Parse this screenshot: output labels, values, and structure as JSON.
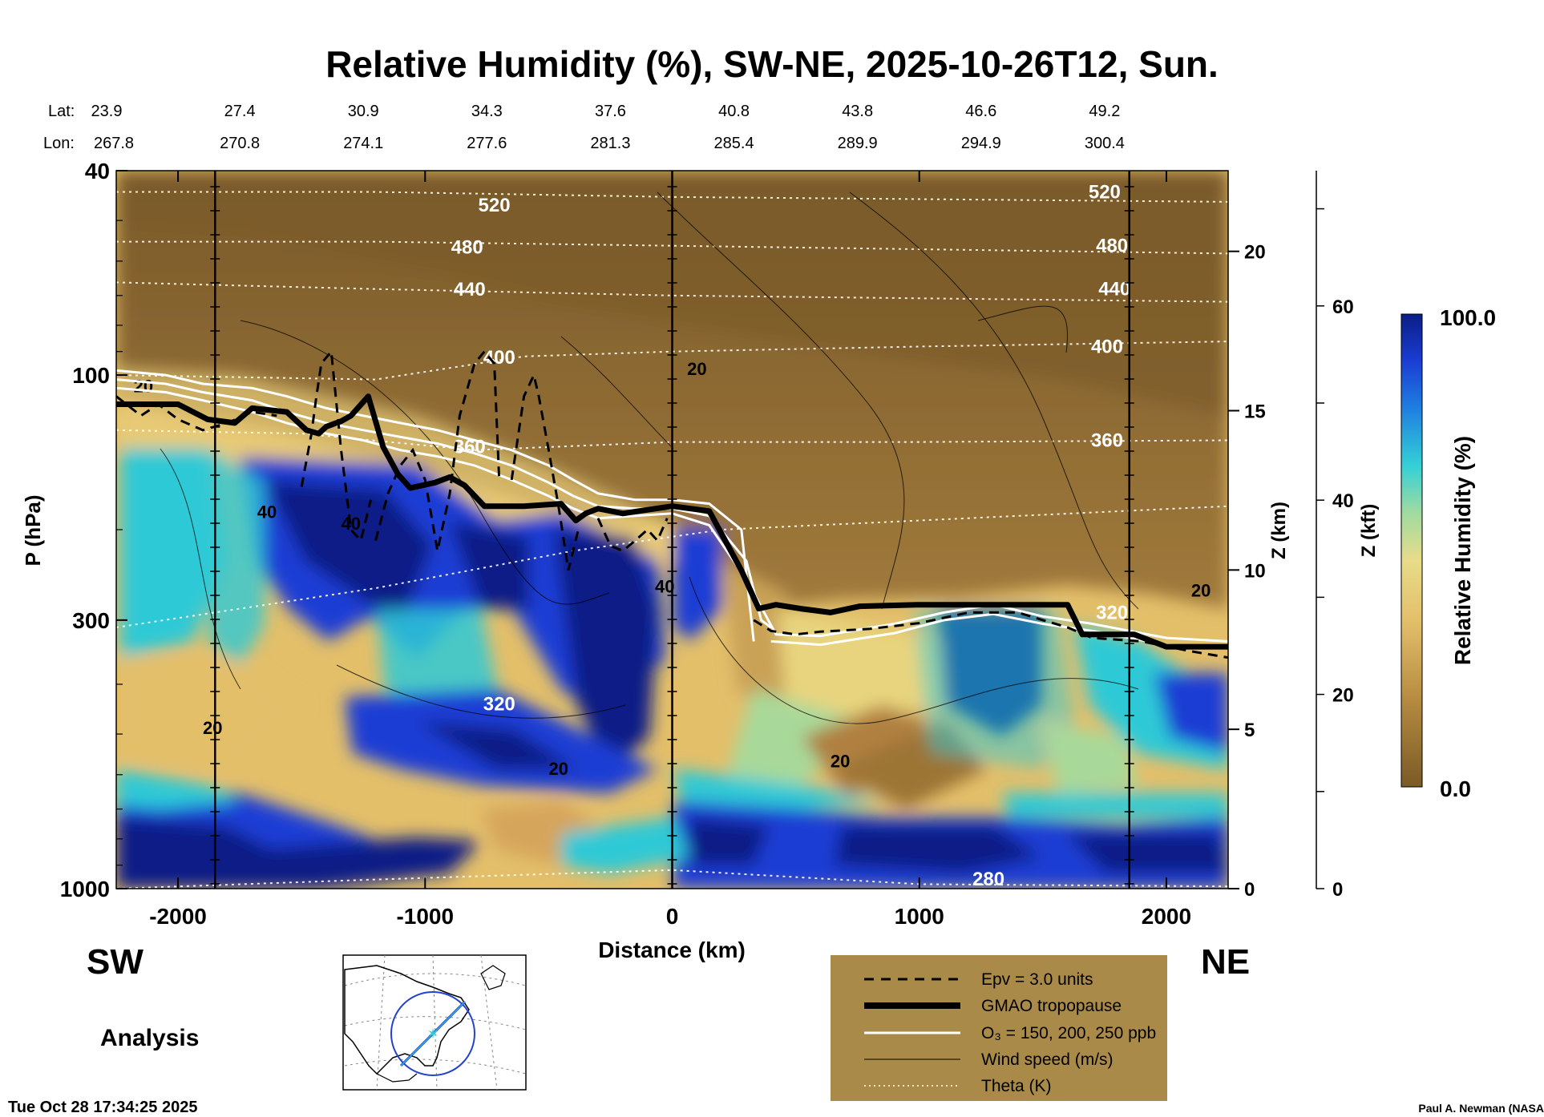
{
  "chart_data": {
    "type": "heatmap",
    "title": "Relative Humidity (%), SW-NE, 2025-10-26T12, Sun.",
    "xlabel": "Distance (km)",
    "ylabel": "P (hPa)",
    "z_km_label": "Z (km)",
    "z_kft_label": "Z (kft)",
    "colorbar_label": "Relative Humidity (%)",
    "colorbar_max_label": "100.0",
    "colorbar_min_label": "0.0",
    "xlim": [
      -2250,
      2250
    ],
    "ylim_hpa": [
      1000,
      40
    ],
    "x_ticks": [
      "-2000",
      "-1000",
      "0",
      "1000",
      "2000"
    ],
    "x_tick_values": [
      -2000,
      -1000,
      0,
      1000,
      2000
    ],
    "p_ticks": [
      "40",
      "100",
      "300",
      "1000"
    ],
    "p_tick_values": [
      40,
      100,
      300,
      1000
    ],
    "z_km_ticks": [
      "0",
      "5",
      "10",
      "15",
      "20"
    ],
    "z_km_values": [
      0,
      5,
      10,
      15,
      20
    ],
    "z_kft_ticks": [
      "0",
      "20",
      "40",
      "60"
    ],
    "z_kft_values": [
      0,
      20,
      40,
      60
    ],
    "lat_label": "Lat:",
    "lon_label": "Lon:",
    "lat_values": [
      "23.9",
      "27.4",
      "30.9",
      "34.3",
      "37.6",
      "40.8",
      "43.8",
      "46.6",
      "49.2"
    ],
    "lon_values": [
      "267.8",
      "270.8",
      "274.1",
      "277.6",
      "281.3",
      "285.4",
      "289.9",
      "294.9",
      "300.4"
    ],
    "lat_lon_x": [
      -2250,
      -1750,
      -1250,
      -750,
      -250,
      250,
      750,
      1250,
      1750
    ],
    "vertical_lines_x": [
      -1850,
      0,
      1850
    ],
    "direction_left": "SW",
    "direction_right": "NE",
    "analysis_label": "Analysis",
    "theta_contours": [
      {
        "label": "520",
        "x": [
          -2250,
          -1200,
          0,
          2250
        ],
        "p": [
          44,
          44,
          45,
          46
        ],
        "label_x": -720,
        "label_p": 48
      },
      {
        "label": "480",
        "x": [
          -2250,
          -1200,
          0,
          2250
        ],
        "p": [
          55,
          55,
          56,
          58
        ],
        "label_x": -830,
        "label_p": 58
      },
      {
        "label": "440",
        "x": [
          -2250,
          -1200,
          0,
          2250
        ],
        "p": [
          66,
          68,
          70,
          72
        ],
        "label_x": -820,
        "label_p": 70
      },
      {
        "label": "400",
        "x": [
          -2250,
          -1200,
          -600,
          0,
          1000,
          2250
        ],
        "p": [
          100,
          102,
          92,
          90,
          88,
          86
        ],
        "label_x": -700,
        "label_p": 95
      },
      {
        "label": "360",
        "x": [
          -2250,
          -1500,
          -800,
          0,
          1000,
          2250
        ],
        "p": [
          128,
          130,
          140,
          135,
          135,
          134
        ],
        "label_x": -820,
        "label_p": 142
      },
      {
        "label": "320",
        "x": [
          -2250,
          -1200,
          -400,
          200,
          1200,
          2250
        ],
        "p": [
          310,
          260,
          220,
          200,
          190,
          180
        ],
        "label_x": -700,
        "label_p": 450
      },
      {
        "label": "280",
        "x": [
          -2250,
          -1200,
          0,
          1000,
          2250
        ],
        "p": [
          1000,
          960,
          920,
          980,
          990
        ],
        "label_x": 1280,
        "label_p": 985
      }
    ],
    "wind_labels": [
      {
        "label": "20",
        "x": -2140,
        "p": 108
      },
      {
        "label": "20",
        "x": 100,
        "p": 100
      },
      {
        "label": "20",
        "x": -1860,
        "p": 500
      },
      {
        "label": "20",
        "x": -460,
        "p": 600
      },
      {
        "label": "20",
        "x": 680,
        "p": 580
      },
      {
        "label": "20",
        "x": 2140,
        "p": 270
      },
      {
        "label": "40",
        "x": -1640,
        "p": 190
      },
      {
        "label": "40",
        "x": -1300,
        "p": 200
      },
      {
        "label": "40",
        "x": -30,
        "p": 265
      }
    ],
    "tropopause": {
      "x": [
        -2250,
        -2000,
        -1880,
        -1770,
        -1700,
        -1560,
        -1480,
        -1430,
        -1400,
        -1340,
        -1300,
        -1230,
        -1170,
        -1110,
        -1060,
        -960,
        -900,
        -840,
        -760,
        -600,
        -450,
        -390,
        -350,
        -300,
        -200,
        0,
        150,
        280,
        350,
        420,
        520,
        640,
        760,
        1000,
        1200,
        1600,
        1660,
        1870,
        2000,
        2250
      ],
      "p": [
        114,
        114,
        122,
        124,
        116,
        118,
        128,
        130,
        126,
        123,
        120,
        110,
        138,
        156,
        166,
        162,
        158,
        164,
        180,
        180,
        178,
        192,
        186,
        182,
        186,
        180,
        184,
        240,
        285,
        280,
        285,
        290,
        282,
        280,
        280,
        280,
        320,
        320,
        338,
        338
      ]
    },
    "epv": [
      {
        "x": [
          -2250,
          -2150,
          -2080,
          -2000,
          -1900,
          -1800,
          -1700,
          -1600
        ],
        "p": [
          110,
          120,
          114,
          122,
          128,
          124,
          118,
          120
        ]
      },
      {
        "x": [
          -1500,
          -1460,
          -1440,
          -1420,
          -1380,
          -1340,
          -1300,
          -1260,
          -1220
        ],
        "p": [
          165,
          130,
          110,
          95,
          90,
          140,
          200,
          210,
          175
        ]
      },
      {
        "x": [
          -1200,
          -1150,
          -1100,
          -1050,
          -1000,
          -950,
          -900,
          -860,
          -800,
          -760,
          -720,
          -700
        ],
        "p": [
          210,
          170,
          150,
          140,
          160,
          220,
          170,
          120,
          95,
          90,
          95,
          160
        ]
      },
      {
        "x": [
          -650,
          -600,
          -560,
          -540,
          -500,
          -460,
          -420,
          -380
        ],
        "p": [
          160,
          110,
          100,
          110,
          140,
          180,
          240,
          200
        ]
      },
      {
        "x": [
          -300,
          -250,
          -200,
          -150,
          -100,
          -60,
          -20
        ],
        "p": [
          190,
          215,
          220,
          210,
          200,
          210,
          190
        ]
      },
      {
        "x": [
          330,
          400,
          500,
          600,
          700,
          800,
          900,
          1000,
          1200,
          1400,
          1500,
          1600,
          1700,
          1900,
          2100,
          2250
        ],
        "p": [
          300,
          315,
          320,
          316,
          314,
          312,
          308,
          304,
          290,
          290,
          300,
          310,
          325,
          330,
          345,
          355
        ]
      }
    ],
    "ozone": [
      {
        "x": [
          -2250,
          -2050,
          -1900,
          -1700,
          -1560,
          -1400,
          -1250,
          -1100,
          -950,
          -800,
          -650,
          -500,
          -400,
          -300,
          -150,
          0,
          150,
          280,
          330
        ],
        "p": [
          98,
          100,
          104,
          106,
          110,
          116,
          120,
          124,
          128,
          134,
          140,
          150,
          160,
          170,
          175,
          175,
          178,
          200,
          330
        ]
      },
      {
        "x": [
          -2250,
          -2050,
          -1900,
          -1700,
          -1560,
          -1400,
          -1250,
          -1100,
          -950,
          -800,
          -650,
          -500,
          -400,
          -300,
          -150,
          0,
          150,
          300,
          360,
          400
        ],
        "p": [
          102,
          104,
          108,
          112,
          118,
          124,
          128,
          132,
          136,
          142,
          150,
          162,
          172,
          180,
          182,
          182,
          188,
          230,
          300,
          310
        ]
      },
      {
        "x": [
          -2250,
          -2050,
          -1900,
          -1700,
          -1560,
          -1400,
          -1250,
          -1100,
          -950,
          -800,
          -650,
          -500,
          -400,
          -300,
          -150,
          0,
          150,
          300,
          420,
          600,
          900,
          1100,
          1300,
          1500,
          1700,
          2000,
          2250
        ],
        "p": [
          106,
          108,
          112,
          118,
          124,
          130,
          134,
          140,
          144,
          150,
          160,
          172,
          182,
          190,
          188,
          186,
          196,
          250,
          320,
          322,
          305,
          290,
          280,
          295,
          305,
          325,
          330
        ]
      },
      {
        "x": [
          400,
          600,
          900,
          1100,
          1300,
          1500,
          1700,
          2000,
          2250
        ],
        "p": [
          330,
          335,
          318,
          300,
          292,
          305,
          315,
          335,
          340
        ]
      }
    ],
    "legend": {
      "items": [
        "Epv = 3.0 units",
        "GMAO tropopause",
        "O₃ = 150, 200, 250 ppb",
        "Wind speed (m/s)",
        "Theta (K)"
      ],
      "background": "#a98a48"
    },
    "colors": {
      "dry": "#7a5a26",
      "tan": "#c9a257",
      "yellow": "#ead27a",
      "green": "#a8d99a",
      "cyan": "#2fc9d6",
      "blue": "#1c4fd8",
      "navy": "#0b1e86"
    }
  },
  "footer": {
    "timestamp": "Tue Oct 28 17:34:25 2025",
    "credit": "Paul A. Newman (NASA"
  }
}
